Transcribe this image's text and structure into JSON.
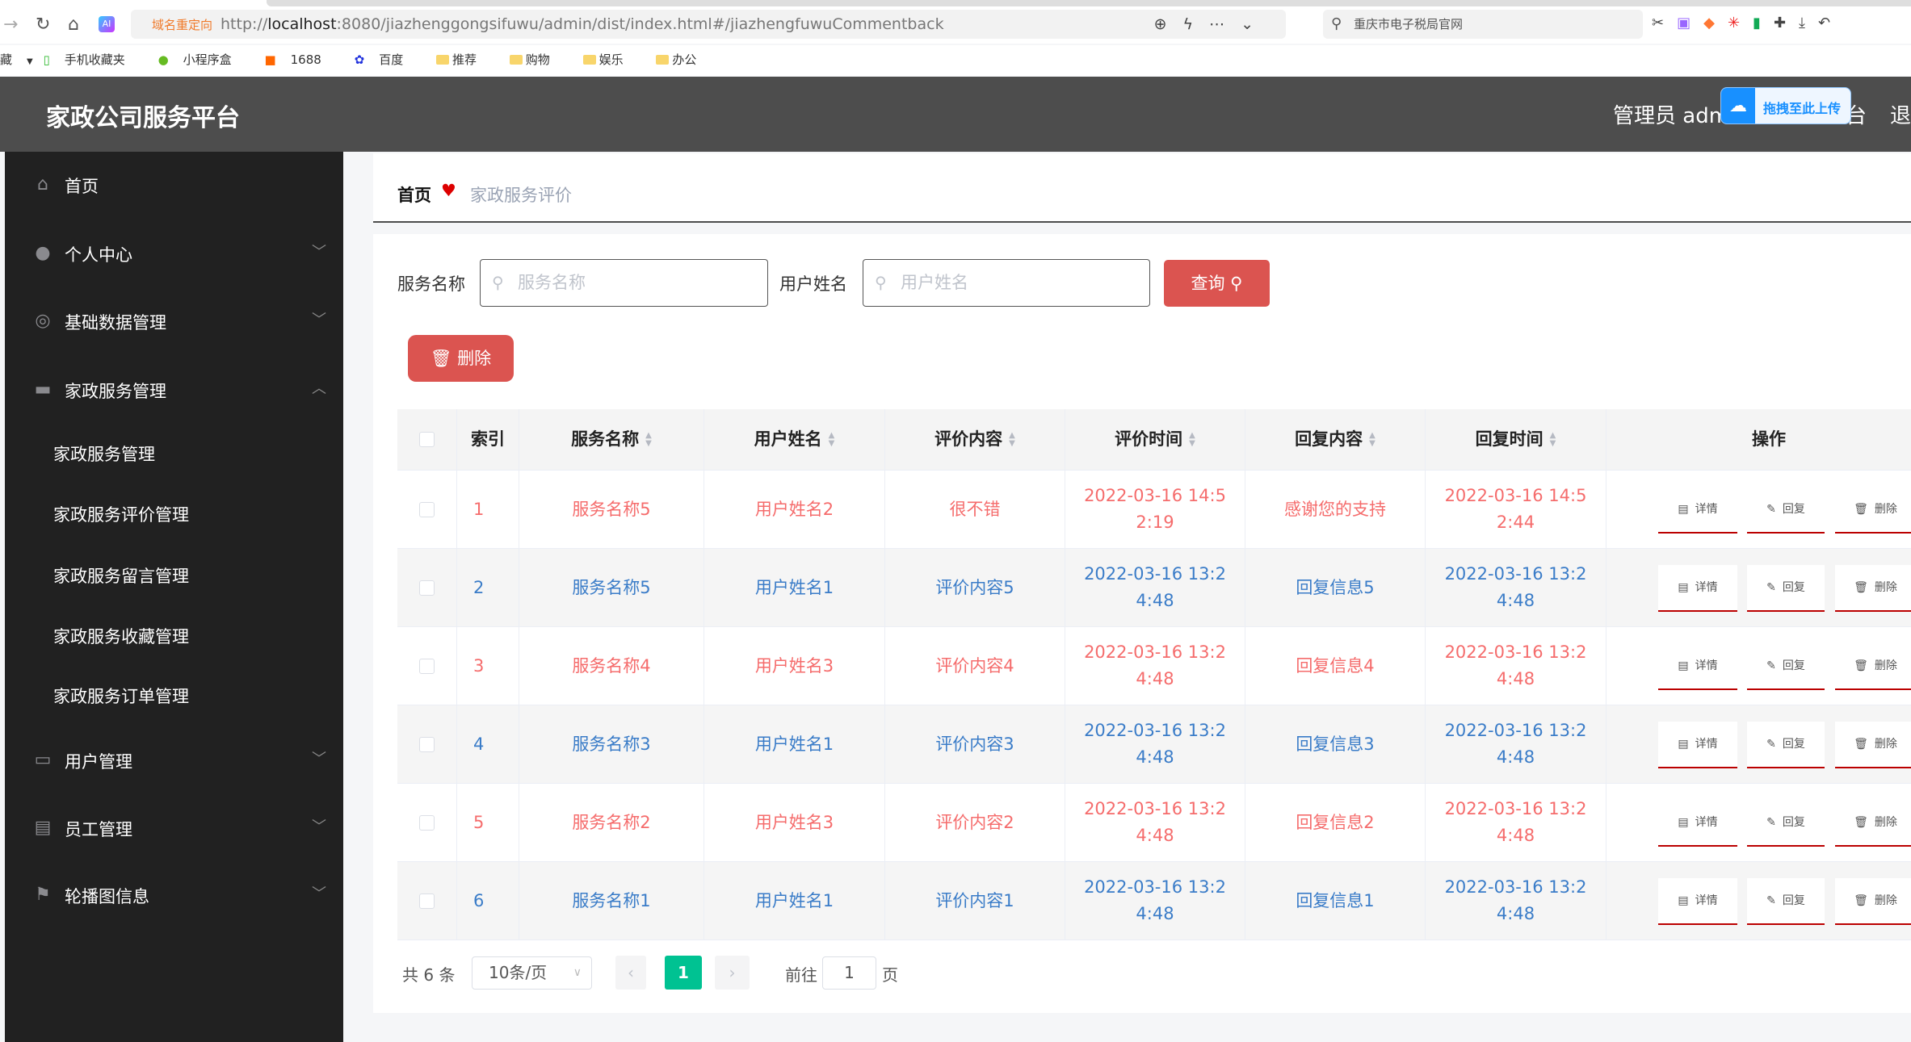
{
  "browser": {
    "redirect_badge": "域名重定向",
    "url_prefix": "http://",
    "url_host": "localhost",
    "url_rest": ":8080/jiazhenggongsifuwu/admin/dist/index.html#/jiazhengfuwuCommentback",
    "search_text": "重庆市电子税局官网",
    "bookmarks": [
      "藏",
      "手机收藏夹",
      "小程序盒",
      "1688",
      "百度",
      "推荐",
      "购物",
      "娱乐",
      "办公"
    ]
  },
  "header": {
    "title": "家政公司服务平台",
    "user": "管理员 admi",
    "tai": "台",
    "exit": "退",
    "upload_widget": "拖拽至此上传"
  },
  "sidebar": {
    "items": [
      {
        "label": "首页",
        "icon": "home-icon"
      },
      {
        "label": "个人中心",
        "icon": "user-icon",
        "arrow": "down"
      },
      {
        "label": "基础数据管理",
        "icon": "lifebuoy-icon",
        "arrow": "down"
      },
      {
        "label": "家政服务管理",
        "icon": "shop-icon",
        "arrow": "up"
      },
      {
        "label": "用户管理",
        "icon": "briefcase-icon",
        "arrow": "down"
      },
      {
        "label": "员工管理",
        "icon": "clipboard-icon",
        "arrow": "down"
      },
      {
        "label": "轮播图信息",
        "icon": "flag-icon",
        "arrow": "down"
      }
    ],
    "subitems": [
      "家政服务管理",
      "家政服务评价管理",
      "家政服务留言管理",
      "家政服务收藏管理",
      "家政服务订单管理"
    ]
  },
  "breadcrumb": {
    "home": "首页",
    "current": "家政服务评价"
  },
  "search": {
    "label1": "服务名称",
    "placeholder1": "服务名称",
    "label2": "用户姓名",
    "placeholder2": "用户姓名",
    "query_button": "查询",
    "delete_button": "删除"
  },
  "table": {
    "headers": [
      "索引",
      "服务名称",
      "用户姓名",
      "评价内容",
      "评价时间",
      "回复内容",
      "回复时间",
      "操作"
    ],
    "actions": [
      "详情",
      "回复",
      "删除"
    ],
    "rows": [
      [
        "1",
        "服务名称5",
        "用户姓名2",
        "很不错",
        "2022-03-16 14:52:19",
        "感谢您的支持",
        "2022-03-16 14:52:44"
      ],
      [
        "2",
        "服务名称5",
        "用户姓名1",
        "评价内容5",
        "2022-03-16 13:24:48",
        "回复信息5",
        "2022-03-16 13:24:48"
      ],
      [
        "3",
        "服务名称4",
        "用户姓名3",
        "评价内容4",
        "2022-03-16 13:24:48",
        "回复信息4",
        "2022-03-16 13:24:48"
      ],
      [
        "4",
        "服务名称3",
        "用户姓名1",
        "评价内容3",
        "2022-03-16 13:24:48",
        "回复信息3",
        "2022-03-16 13:24:48"
      ],
      [
        "5",
        "服务名称2",
        "用户姓名3",
        "评价内容2",
        "2022-03-16 13:24:48",
        "回复信息2",
        "2022-03-16 13:24:48"
      ],
      [
        "6",
        "服务名称1",
        "用户姓名1",
        "评价内容1",
        "2022-03-16 13:24:48",
        "回复信息1",
        "2022-03-16 13:24:48"
      ]
    ],
    "colors": {
      "odd": "#f56c6c",
      "even": "#3a7cc8"
    }
  },
  "pagination": {
    "total": "共 6 条",
    "page_size": "10条/页",
    "current_page": "1",
    "goto_label": "前往",
    "goto_value": "1",
    "page_suffix": "页",
    "accent": "#00c292"
  }
}
